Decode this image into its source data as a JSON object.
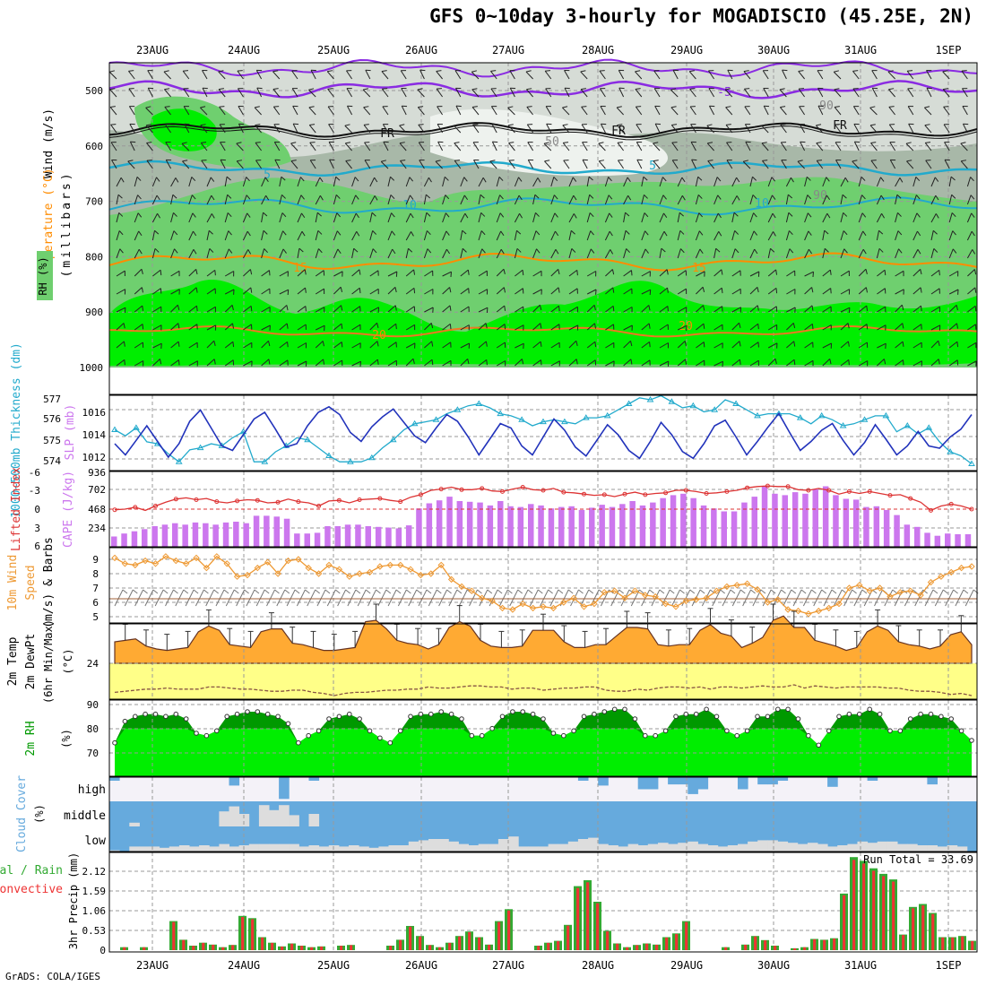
{
  "title": "GFS 0~10day 3-hourly for MOGADISCIO (45.25E, 2N)",
  "footer": "GrADS: COLA/IGES",
  "dates": [
    "23AUG",
    "24AUG",
    "25AUG",
    "26AUG",
    "27AUG",
    "28AUG",
    "29AUG",
    "30AUG",
    "31AUG",
    "1SEP"
  ],
  "colors": {
    "rh_light": "#d6dcd6",
    "rh_mid": "#a8b8a8",
    "rh_green": "#6fcf6f",
    "rh_bright": "#00ee00",
    "wind_purple": "#8a2be2",
    "temp_orange": "#ff8c00",
    "sky_blue": "#66aadd",
    "thickness": "#22aacc",
    "slp": "#2233bb",
    "li_red": "#dd3333",
    "cape_purple": "#cc77ee",
    "wind_orange": "#ee9933",
    "temp_fill": "#ffaa33",
    "dew_fill": "#ffff88",
    "rh2m_dark": "#009900",
    "rh2m_bright": "#00ee00",
    "rain_red": "#ee3333",
    "rain_green": "#33aa33"
  },
  "panels": {
    "upper": {
      "labels": [
        "Wind (m/s)",
        "Temperature (°C)",
        "RH (%)",
        "(millibars)"
      ],
      "pressure_ticks": [
        "500",
        "600",
        "700",
        "800",
        "900",
        "1000"
      ],
      "contour_labels": [
        "-5",
        "FR",
        "FR",
        "FR",
        "5",
        "5",
        "10",
        "10",
        "15",
        "15",
        "20",
        "20",
        "50",
        "90",
        "90"
      ]
    },
    "thickness": {
      "left_label": "1000~500mb Thickness (dm)",
      "right_label": "SLP (mb)",
      "left_ticks": [
        "577",
        "576",
        "575",
        "574"
      ],
      "right_ticks": [
        "1016",
        "1014",
        "1012"
      ]
    },
    "cape": {
      "left_label": "Lifted Index",
      "right_label": "CAPE (J/kg)",
      "left_ticks": [
        "-6",
        "-3",
        "0",
        "3",
        "6"
      ],
      "right_ticks": [
        "936",
        "702",
        "468",
        "234"
      ]
    },
    "wind10m": {
      "label_a": "10m Wind",
      "label_b": "Speed",
      "label_c": "(m/s) & Barbs",
      "ticks": [
        "9",
        "8",
        "7",
        "6",
        "5"
      ]
    },
    "temp2m": {
      "label_a": "2m Temp",
      "label_b": "2m DewPt",
      "label_c": "(6hr Min/Max)",
      "unit": "(°C)",
      "ticks": [
        "24"
      ]
    },
    "rh2m": {
      "label": "2m RH",
      "unit": "(%)",
      "ticks": [
        "90",
        "80",
        "70"
      ]
    },
    "cloud": {
      "label": "Cloud Cover",
      "unit": "(%)",
      "levels": [
        "high",
        "middle",
        "low"
      ]
    },
    "precip": {
      "label_a": "Total / Rain",
      "label_b": "Convective",
      "unit": "3hr Precip (mm)",
      "ticks": [
        "2.12",
        "1.59",
        "1.06",
        "0.53",
        "0"
      ],
      "run_total": "Run Total = 33.69"
    }
  },
  "chart_data": {
    "type": "meteogram",
    "x_unit": "3-hourly steps from 22AUG 12Z",
    "series": [
      {
        "name": "SLP (mb)",
        "values": [
          1013.2,
          1012.2,
          1013.5,
          1014.8,
          1013.4,
          1012.0,
          1013.2,
          1015.2,
          1016.2,
          1014.6,
          1013.0,
          1012.6,
          1014.0,
          1015.4,
          1016.0,
          1014.5,
          1012.9,
          1013.2,
          1014.8,
          1016.0,
          1016.5,
          1015.8,
          1014.2,
          1013.4,
          1014.7,
          1015.6,
          1016.3,
          1015.1,
          1013.9,
          1013.3,
          1014.6,
          1015.8,
          1015.2,
          1013.8,
          1012.2,
          1013.6,
          1015.0,
          1014.6,
          1013.0,
          1012.2,
          1013.8,
          1015.4,
          1014.4,
          1012.9,
          1012.1,
          1013.5,
          1014.9,
          1014.0,
          1012.6,
          1011.9,
          1013.4,
          1015.1,
          1014.0,
          1012.5,
          1011.9,
          1013.2,
          1014.8,
          1015.3,
          1013.8,
          1012.2,
          1013.4,
          1014.7,
          1015.9,
          1014.2,
          1012.6,
          1013.4,
          1014.4,
          1015.0,
          1013.5,
          1012.2,
          1013.3,
          1014.9,
          1013.6,
          1012.2,
          1013.0,
          1014.3,
          1013.0,
          1012.8,
          1013.8,
          1014.5,
          1015.8
        ]
      },
      {
        "name": "1000~500mb Thickness (dm)",
        "values": [
          575.5,
          575.2,
          575.6,
          574.9,
          574.8,
          574.3,
          573.9,
          574.5,
          574.6,
          574.8,
          574.7,
          575.1,
          575.4,
          573.9,
          573.9,
          574.4,
          574.7,
          575.1,
          575.0,
          574.6,
          574.2,
          573.9,
          573.9,
          573.9,
          574.1,
          574.6,
          575.0,
          575.5,
          575.8,
          575.9,
          576.0,
          576.3,
          576.5,
          576.7,
          576.8,
          576.6,
          576.3,
          576.2,
          576.0,
          575.7,
          575.9,
          576.0,
          575.9,
          575.8,
          576.1,
          576.1,
          576.2,
          576.5,
          576.8,
          577.1,
          577.0,
          577.2,
          576.9,
          576.6,
          576.7,
          576.4,
          576.5,
          577.0,
          576.8,
          576.5,
          576.2,
          576.3,
          576.3,
          576.3,
          576.1,
          575.8,
          576.2,
          576.0,
          575.7,
          575.8,
          576.0,
          576.2,
          576.2,
          575.4,
          575.7,
          575.3,
          575.6,
          574.9,
          574.4,
          574.2,
          573.8
        ]
      },
      {
        "name": "CAPE (J/kg)",
        "values": [
          140,
          180,
          210,
          240,
          280,
          300,
          320,
          300,
          330,
          320,
          300,
          330,
          340,
          320,
          420,
          420,
          410,
          380,
          180,
          180,
          190,
          280,
          280,
          300,
          300,
          280,
          270,
          260,
          250,
          290,
          520,
          590,
          630,
          680,
          620,
          610,
          600,
          560,
          620,
          550,
          540,
          580,
          560,
          520,
          540,
          550,
          500,
          530,
          570,
          540,
          580,
          620,
          560,
          600,
          660,
          700,
          720,
          660,
          560,
          520,
          480,
          480,
          600,
          680,
          820,
          720,
          700,
          740,
          720,
          780,
          820,
          700,
          650,
          640,
          540,
          550,
          500,
          430,
          300,
          270,
          190,
          150,
          180,
          170,
          170
        ]
      },
      {
        "name": "Lifted Index",
        "values": [
          0.1,
          0.0,
          -0.3,
          0.2,
          -0.5,
          -1.1,
          -1.6,
          -1.8,
          -1.5,
          -1.7,
          -1.2,
          -1.0,
          -1.3,
          -1.5,
          -1.4,
          -1.0,
          -1.1,
          -1.6,
          -1.2,
          -1.0,
          -0.5,
          -1.3,
          -1.4,
          -1.0,
          -1.5,
          -1.6,
          -1.7,
          -1.4,
          -1.2,
          -1.9,
          -2.3,
          -3.0,
          -3.2,
          -3.5,
          -3.1,
          -3.1,
          -3.3,
          -2.9,
          -2.8,
          -3.2,
          -3.5,
          -3.1,
          -3.0,
          -3.3,
          -2.7,
          -2.6,
          -2.4,
          -2.2,
          -2.3,
          -2.0,
          -2.4,
          -2.7,
          -2.3,
          -2.5,
          -2.6,
          -3.0,
          -3.0,
          -2.8,
          -2.5,
          -2.6,
          -2.8,
          -3.0,
          -3.4,
          -3.6,
          -3.7,
          -3.6,
          -3.6,
          -3.1,
          -3.0,
          -3.3,
          -3.0,
          -2.4,
          -2.8,
          -2.5,
          -2.8,
          -2.5,
          -2.2,
          -2.3,
          -1.7,
          -1.1,
          0.2,
          -0.5,
          -0.8,
          -0.5,
          0.0
        ]
      },
      {
        "name": "10m Wind Speed (m/s)",
        "values": [
          9.1,
          8.7,
          8.6,
          8.9,
          8.7,
          9.2,
          8.9,
          8.7,
          9.1,
          8.4,
          9.2,
          8.7,
          7.8,
          7.9,
          8.4,
          8.8,
          8.0,
          8.9,
          9.0,
          8.4,
          8.0,
          8.6,
          8.3,
          7.8,
          8.0,
          8.1,
          8.5,
          8.6,
          8.6,
          8.3,
          7.9,
          8.0,
          8.6,
          7.6,
          7.1,
          6.8,
          6.3,
          6.1,
          5.6,
          5.5,
          5.9,
          5.6,
          5.7,
          5.6,
          6.0,
          6.3,
          5.7,
          5.9,
          6.7,
          6.8,
          6.3,
          6.8,
          6.5,
          6.4,
          5.9,
          5.7,
          6.1,
          6.2,
          6.3,
          6.8,
          7.1,
          7.2,
          7.3,
          6.9,
          6.0,
          6.2,
          5.5,
          5.4,
          5.2,
          5.4,
          5.6,
          5.9,
          7.0,
          7.2,
          6.8,
          7.0,
          6.4,
          6.7,
          6.8,
          6.5,
          7.4,
          7.8,
          8.1,
          8.4,
          8.5
        ]
      },
      {
        "name": "2m Temp (°C)",
        "values": [
          25.5,
          25.6,
          25.7,
          25.2,
          25.0,
          24.9,
          25.0,
          25.1,
          26.2,
          26.6,
          26.3,
          25.3,
          25.2,
          25.1,
          26.2,
          26.4,
          26.4,
          25.4,
          25.3,
          25.1,
          24.9,
          24.9,
          25.0,
          25.1,
          26.9,
          27.0,
          26.4,
          25.6,
          25.4,
          25.3,
          25.0,
          25.3,
          26.5,
          26.9,
          26.6,
          25.6,
          25.2,
          25.1,
          25.1,
          25.2,
          26.3,
          26.3,
          26.3,
          25.5,
          25.1,
          25.1,
          25.3,
          25.3,
          25.9,
          26.5,
          26.5,
          26.4,
          25.3,
          25.2,
          25.3,
          25.3,
          26.3,
          26.7,
          26.1,
          25.9,
          25.1,
          25.4,
          25.8,
          27.0,
          27.3,
          26.5,
          26.5,
          25.6,
          25.4,
          25.2,
          24.9,
          25.1,
          26.2,
          26.6,
          26.3,
          25.5,
          25.3,
          25.2,
          25.0,
          25.2,
          26.0,
          26.2,
          25.3
        ]
      },
      {
        "name": "2m DewPt (°C)",
        "values": [
          21.3,
          21.4,
          21.5,
          21.6,
          21.6,
          21.7,
          21.6,
          21.6,
          21.6,
          21.8,
          21.8,
          21.7,
          21.6,
          21.6,
          21.5,
          21.4,
          21.4,
          21.5,
          21.5,
          21.3,
          21.2,
          21.0,
          21.2,
          21.3,
          21.3,
          21.4,
          21.5,
          21.5,
          21.6,
          21.6,
          21.8,
          21.7,
          21.7,
          21.8,
          21.9,
          21.9,
          21.8,
          21.8,
          21.6,
          21.7,
          21.7,
          21.5,
          21.6,
          21.7,
          21.7,
          21.8,
          21.8,
          21.5,
          21.4,
          21.4,
          21.6,
          21.5,
          21.7,
          21.8,
          21.8,
          21.7,
          21.8,
          21.6,
          21.8,
          21.8,
          21.7,
          21.8,
          21.9,
          21.8,
          21.8,
          22.0,
          21.7,
          21.9,
          21.8,
          21.7,
          21.8,
          21.8,
          21.8,
          21.8,
          21.7,
          21.7,
          21.5,
          21.4,
          21.4,
          21.3,
          21.1,
          21.2,
          21.0
        ]
      },
      {
        "name": "2m RH (%)",
        "values": [
          74,
          83,
          85,
          86,
          86,
          85,
          86,
          84,
          78,
          77,
          79,
          85,
          86,
          87,
          87,
          86,
          85,
          82,
          74,
          77,
          79,
          84,
          85,
          86,
          84,
          79,
          76,
          74,
          79,
          85,
          86,
          86,
          87,
          86,
          84,
          77,
          77,
          80,
          85,
          87,
          87,
          86,
          84,
          78,
          77,
          79,
          85,
          86,
          87,
          88,
          88,
          84,
          77,
          77,
          79,
          85,
          86,
          86,
          88,
          85,
          79,
          77,
          79,
          85,
          85,
          88,
          88,
          84,
          77,
          73,
          79,
          85,
          86,
          86,
          88,
          86,
          79,
          79,
          84,
          86,
          86,
          85,
          84,
          79,
          75
        ]
      },
      {
        "name": "3hr Precip (mm)",
        "values": [
          0.0,
          0.08,
          0.0,
          0.08,
          0.0,
          0.0,
          0.78,
          0.28,
          0.12,
          0.2,
          0.15,
          0.08,
          0.14,
          0.92,
          0.86,
          0.35,
          0.2,
          0.1,
          0.18,
          0.12,
          0.08,
          0.1,
          0.0,
          0.12,
          0.14,
          0.0,
          0.0,
          0.0,
          0.12,
          0.28,
          0.65,
          0.38,
          0.14,
          0.08,
          0.2,
          0.38,
          0.5,
          0.35,
          0.15,
          0.78,
          1.1,
          0.0,
          0.0,
          0.12,
          0.2,
          0.25,
          0.68,
          1.72,
          1.88,
          1.3,
          0.52,
          0.18,
          0.08,
          0.14,
          0.18,
          0.15,
          0.35,
          0.45,
          0.78,
          0.0,
          0.0,
          0.0,
          0.08,
          0.0,
          0.15,
          0.38,
          0.27,
          0.12,
          0.0,
          0.05,
          0.08,
          0.3,
          0.28,
          0.32,
          1.52,
          2.5,
          2.4,
          2.2,
          2.05,
          1.9,
          0.42,
          1.16,
          1.24,
          1.0,
          0.35,
          0.35,
          0.38,
          0.25
        ]
      },
      {
        "name": "Cloud Cover high (%)",
        "values": [
          15,
          0,
          0,
          0,
          0,
          0,
          0,
          0,
          0,
          0,
          0,
          0,
          35,
          0,
          0,
          0,
          0,
          90,
          0,
          0,
          15,
          0,
          0,
          0,
          0,
          0,
          0,
          0,
          0,
          0,
          0,
          0,
          0,
          0,
          0,
          0,
          0,
          0,
          0,
          0,
          0,
          0,
          0,
          0,
          0,
          0,
          0,
          15,
          0,
          35,
          0,
          0,
          0,
          50,
          50,
          0,
          30,
          30,
          70,
          50,
          0,
          0,
          0,
          50,
          0,
          30,
          30,
          15,
          0,
          0,
          0,
          0,
          40,
          0,
          0,
          0,
          15,
          0,
          0,
          0,
          0,
          0,
          30,
          0,
          0,
          0,
          0
        ]
      },
      {
        "name": "Cloud Cover middle (%)",
        "values": [
          0,
          0,
          15,
          0,
          0,
          0,
          0,
          0,
          0,
          0,
          0,
          60,
          80,
          50,
          0,
          85,
          65,
          85,
          45,
          0,
          50,
          0,
          0,
          0,
          0,
          0,
          0,
          0,
          0,
          0,
          0,
          0,
          0,
          0,
          0,
          0,
          0,
          0,
          0,
          0,
          0,
          0,
          0,
          0,
          0,
          0,
          0,
          0,
          0,
          0,
          0,
          0,
          0,
          0,
          0,
          0,
          0,
          0,
          0,
          0,
          0,
          0,
          0,
          0,
          0,
          0,
          0,
          0,
          0,
          0,
          0,
          0,
          0,
          0,
          0,
          0,
          0,
          0,
          0,
          0,
          0,
          0,
          0,
          0,
          0,
          0,
          0
        ]
      },
      {
        "name": "Cloud Cover low (%)",
        "values": [
          5,
          0,
          20,
          20,
          20,
          15,
          20,
          25,
          20,
          25,
          20,
          30,
          20,
          25,
          30,
          30,
          30,
          30,
          30,
          20,
          25,
          20,
          25,
          20,
          25,
          20,
          15,
          20,
          25,
          25,
          40,
          45,
          50,
          50,
          40,
          30,
          25,
          30,
          30,
          50,
          60,
          20,
          20,
          20,
          30,
          30,
          40,
          50,
          55,
          30,
          25,
          20,
          30,
          25,
          30,
          35,
          30,
          35,
          40,
          30,
          25,
          20,
          25,
          30,
          40,
          45,
          45,
          40,
          35,
          30,
          35,
          30,
          20,
          25,
          30,
          40,
          35,
          40,
          40,
          30,
          30,
          25,
          25,
          20,
          25,
          20
        ]
      }
    ]
  }
}
